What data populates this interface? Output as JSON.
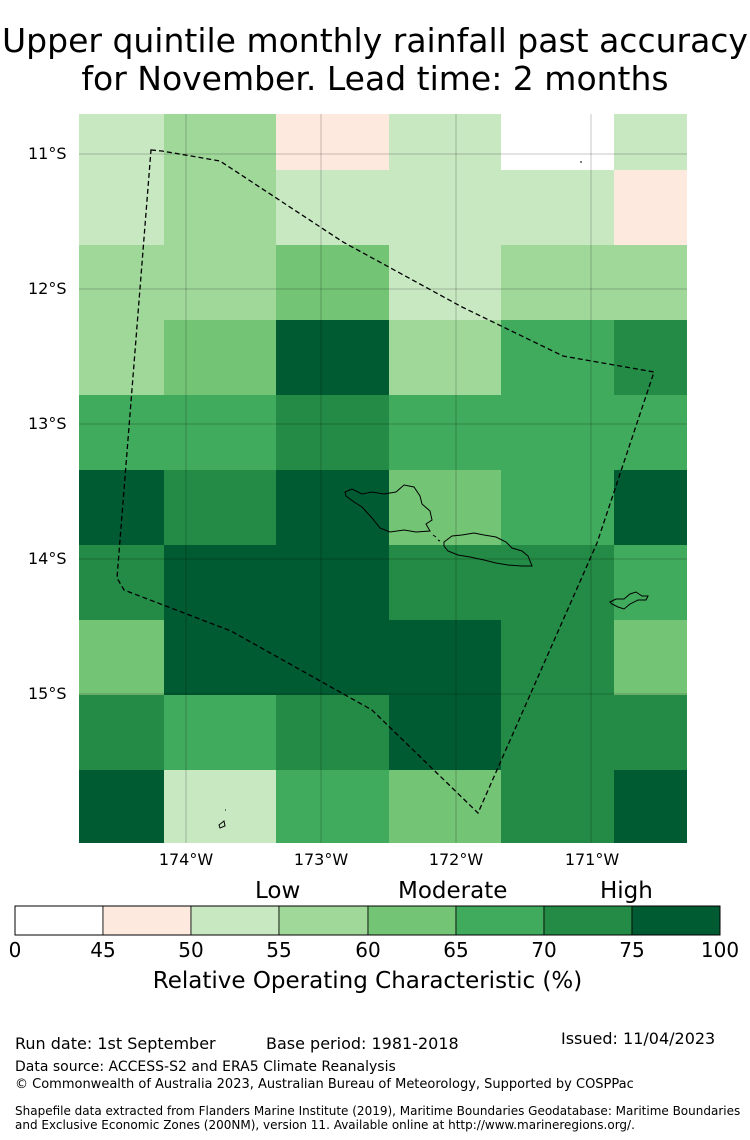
{
  "title_line1": "Upper quintile monthly rainfall past accuracy",
  "title_line2": "for November. Lead time: 2 months",
  "latitude_labels": [
    "11°S",
    "12°S",
    "13°S",
    "14°S",
    "15°S"
  ],
  "longitude_labels": [
    "174°W",
    "173°W",
    "172°W",
    "171°W"
  ],
  "colorbar": {
    "category_labels": [
      "Low",
      "Moderate",
      "High"
    ],
    "ticks": [
      "0",
      "45",
      "50",
      "55",
      "60",
      "65",
      "70",
      "75",
      "100"
    ],
    "bins": [
      {
        "min": 0,
        "max": 45,
        "color": "#ffffff"
      },
      {
        "min": 45,
        "max": 50,
        "color": "#fee9df"
      },
      {
        "min": 50,
        "max": 55,
        "color": "#c8e8c2"
      },
      {
        "min": 55,
        "max": 60,
        "color": "#a0d89a"
      },
      {
        "min": 60,
        "max": 65,
        "color": "#74c476"
      },
      {
        "min": 65,
        "max": 70,
        "color": "#41ab5d"
      },
      {
        "min": 70,
        "max": 75,
        "color": "#238b45"
      },
      {
        "min": 75,
        "max": 100,
        "color": "#005a32"
      }
    ],
    "axis_label": "Relative Operating Characteristic (%)"
  },
  "map_grid": {
    "rows": [
      [
        2,
        3,
        1,
        2,
        0,
        2
      ],
      [
        2,
        3,
        2,
        2,
        2,
        1
      ],
      [
        3,
        3,
        4,
        2,
        3,
        3
      ],
      [
        3,
        4,
        7,
        3,
        5,
        6
      ],
      [
        5,
        5,
        6,
        5,
        5,
        5
      ],
      [
        7,
        6,
        7,
        4,
        5,
        7
      ],
      [
        6,
        7,
        7,
        6,
        6,
        5
      ],
      [
        4,
        7,
        7,
        7,
        6,
        4
      ],
      [
        6,
        5,
        6,
        7,
        6,
        6
      ],
      [
        7,
        2,
        5,
        4,
        6,
        7
      ]
    ]
  },
  "footer": {
    "run_date": "Run date: 1st September",
    "base_period": "Base period: 1981-2018",
    "issued": "Issued: 11/04/2023",
    "data_source": "Data source: ACCESS-S2 and ERA5 Climate Reanalysis",
    "copyright": "© Commonwealth of Australia 2023, Australian Bureau of Meteorology, Supported by COSPPac",
    "shapefile_line1": "Shapefile data extracted from Flanders Marine Institute (2019), Maritime Boundaries Geodatabase: Maritime Boundaries",
    "shapefile_line2": "and Exclusive Economic Zones (200NM), version 11. Available online at http://www.marineregions.org/."
  }
}
